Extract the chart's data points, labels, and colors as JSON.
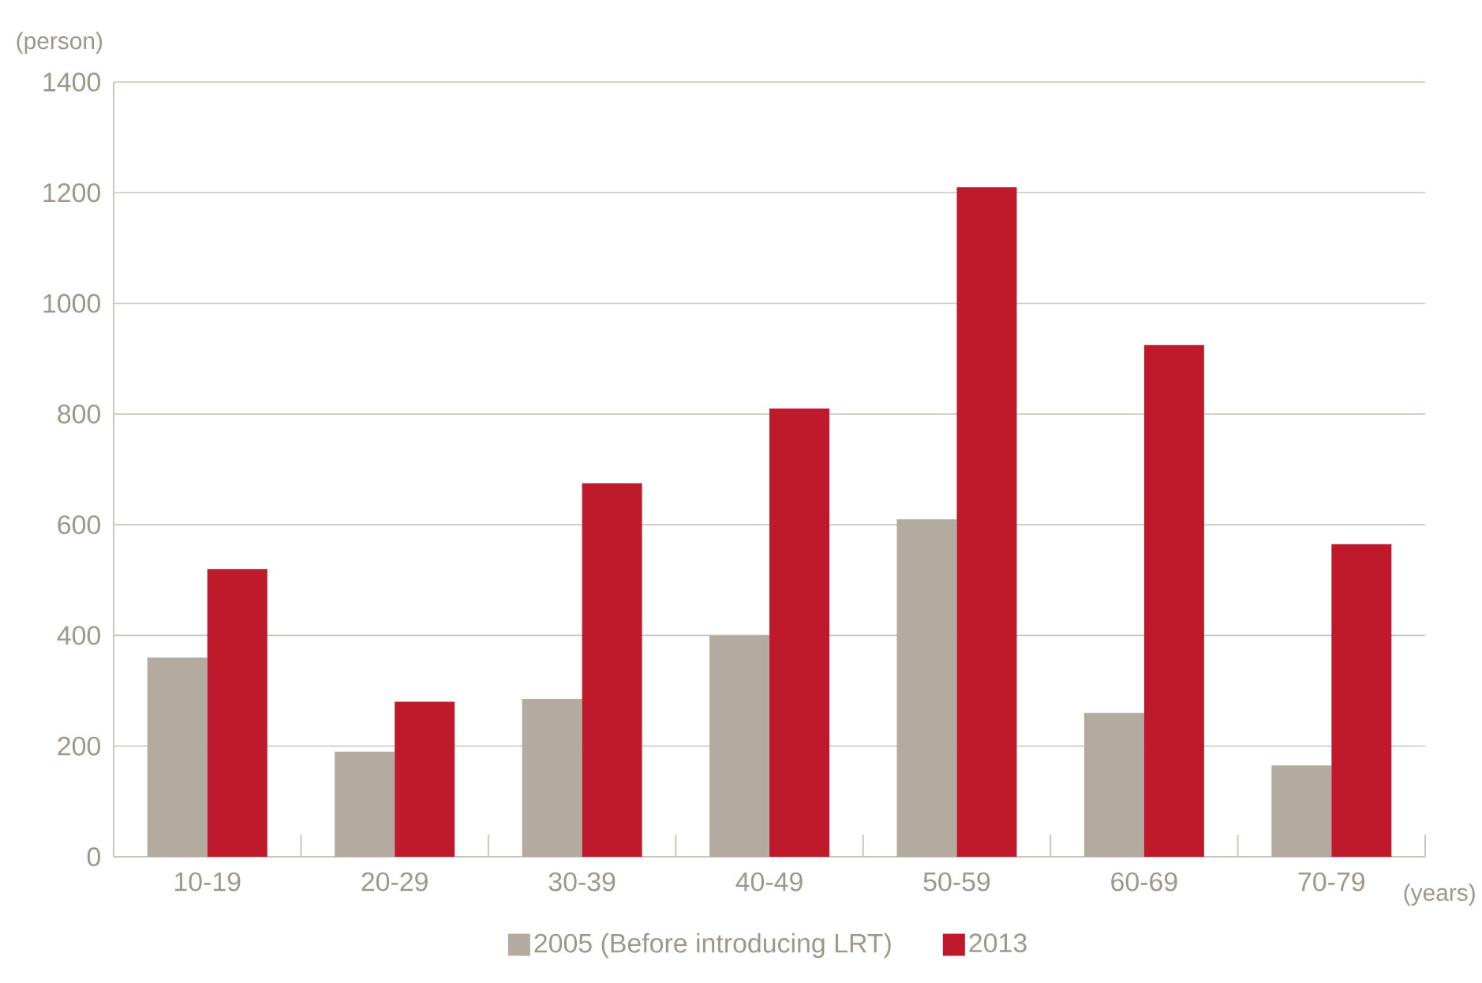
{
  "chart_data": {
    "type": "bar",
    "ylabel": "(person)",
    "xlabel": "(years)",
    "categories": [
      "10-19",
      "20-29",
      "30-39",
      "40-49",
      "50-59",
      "60-69",
      "70-79"
    ],
    "series": [
      {
        "name": "2005 (Before introducing LRT)",
        "color": "#b3aaa0",
        "values": [
          360,
          190,
          285,
          400,
          610,
          260,
          165
        ]
      },
      {
        "name": "2013",
        "color": "#be1a2c",
        "values": [
          520,
          280,
          675,
          810,
          1210,
          925,
          565
        ]
      }
    ],
    "ylim": [
      0,
      1400
    ],
    "yticks": [
      0,
      200,
      400,
      600,
      800,
      1000,
      1200,
      1400
    ],
    "grid": "y",
    "legend": "bottom"
  }
}
